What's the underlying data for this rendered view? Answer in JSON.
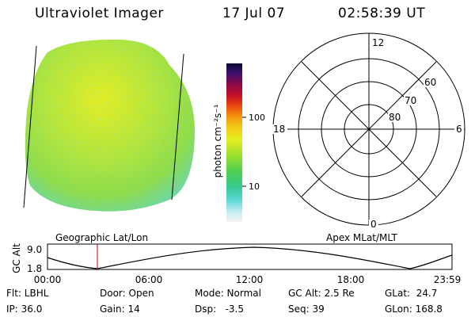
{
  "header": {
    "title": "Ultraviolet Imager",
    "date": "17 Jul 07",
    "time": "02:58:39 UT"
  },
  "colorbar": {
    "label": "photon cm⁻²s⁻¹",
    "ticks": [
      "100",
      "10"
    ]
  },
  "polar": {
    "mlt_labels": [
      "12",
      "18",
      "6",
      "0"
    ],
    "lat_labels": [
      "60",
      "70",
      "80"
    ]
  },
  "altitude_panel": {
    "ylabel": "GC Alt",
    "ymax": "9.0",
    "ymin": "1.8",
    "left_label": "Geographic Lat/Lon",
    "right_label": "Apex MLat/MLT",
    "xticks": [
      "00:00",
      "06:00",
      "12:00",
      "18:00",
      "23:59"
    ],
    "marker_color": "#c8202a"
  },
  "info": {
    "flt": "Flt: LBHL",
    "ip": "IP: 36.0",
    "door": "Door: Open",
    "gain": "Gain: 14",
    "mode": "Mode: Normal",
    "dsp": "Dsp:   -3.5",
    "gcalt": "GC Alt: 2.5 Re",
    "seq": "Seq: 39",
    "glat": "GLat:  24.7",
    "glon": "GLon: 168.8"
  }
}
